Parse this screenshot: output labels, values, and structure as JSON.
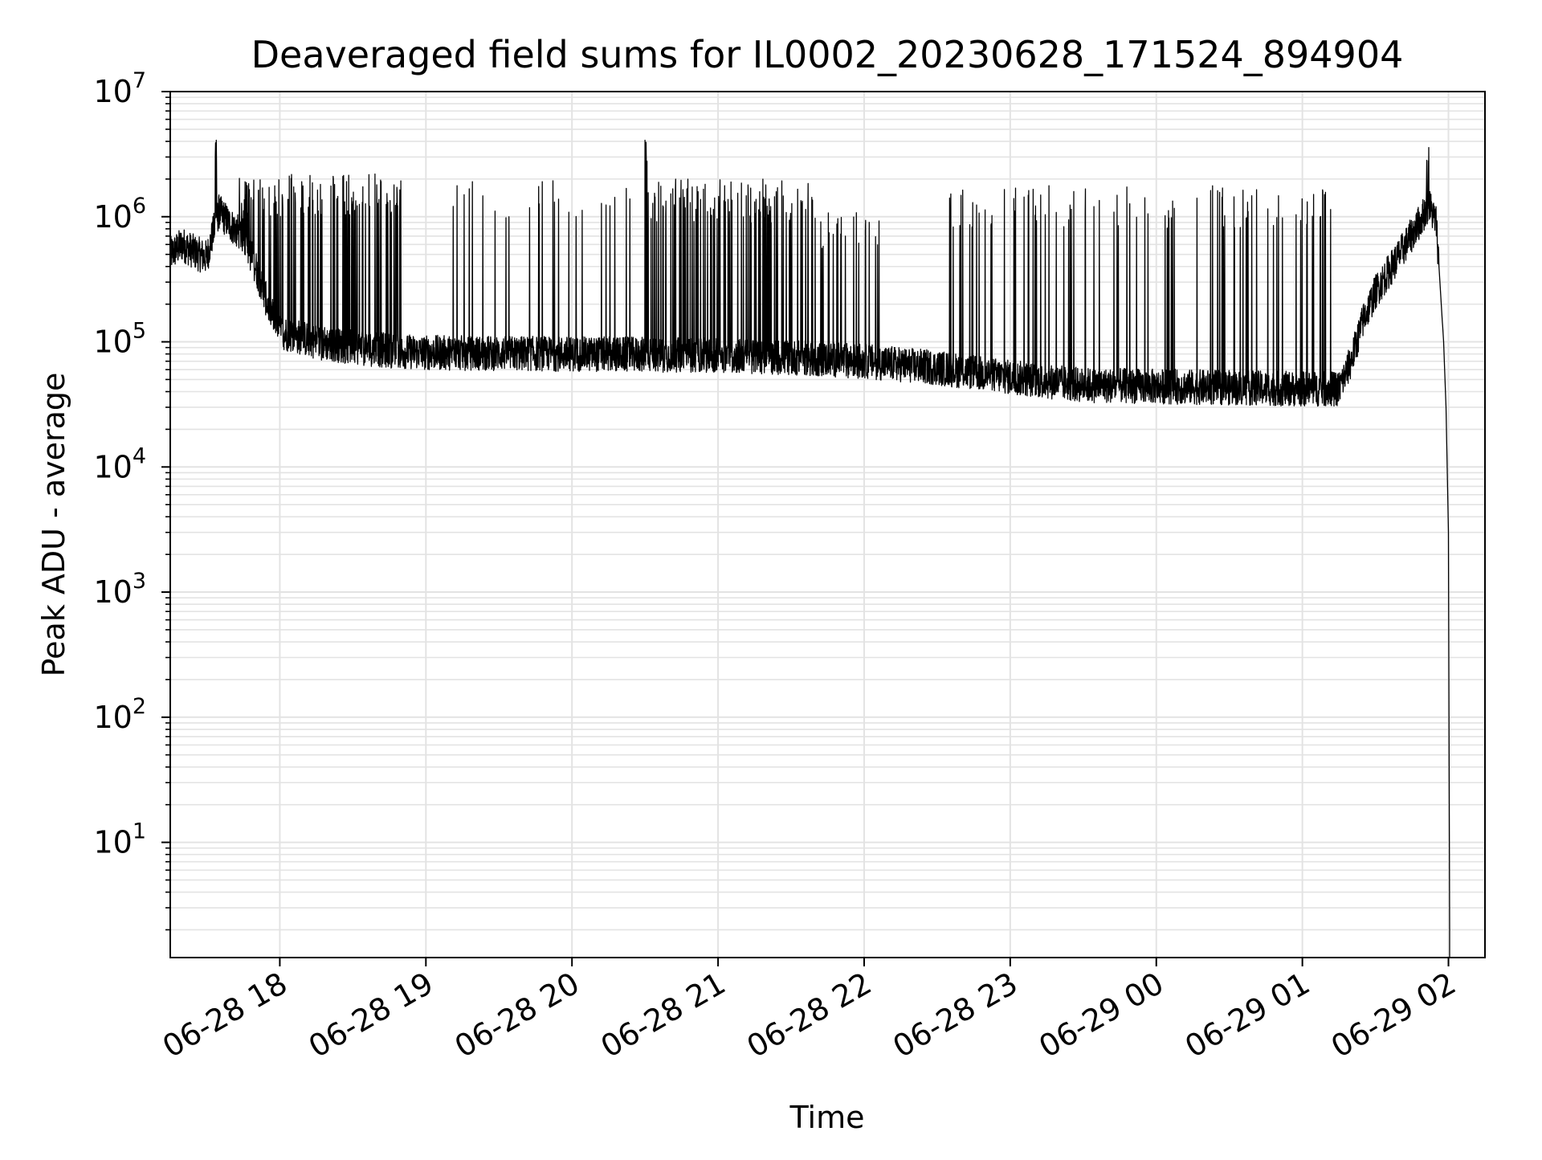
{
  "chart_data": {
    "type": "line",
    "title": "Deaveraged field sums for IL0002_20230628_171524_894904",
    "xlabel": "Time",
    "ylabel": "Peak ADU - average",
    "yscale": "log",
    "xlim": [
      "2023-06-28 17:15",
      "2023-06-29 02:15"
    ],
    "ylim": [
      1.2,
      10000000
    ],
    "grid": "on (major and minor)",
    "line_color": "#000000",
    "grid_color": "#e3e3e3",
    "x_ticks": [
      {
        "t": "2023-06-28 18:00",
        "label": "06-28 18"
      },
      {
        "t": "2023-06-28 19:00",
        "label": "06-28 19"
      },
      {
        "t": "2023-06-28 20:00",
        "label": "06-28 20"
      },
      {
        "t": "2023-06-28 21:00",
        "label": "06-28 21"
      },
      {
        "t": "2023-06-28 22:00",
        "label": "06-28 22"
      },
      {
        "t": "2023-06-28 23:00",
        "label": "06-28 23"
      },
      {
        "t": "2023-06-29 00:00",
        "label": "06-29 00"
      },
      {
        "t": "2023-06-29 01:00",
        "label": "06-29 01"
      },
      {
        "t": "2023-06-29 02:00",
        "label": "06-29 02"
      }
    ],
    "y_ticks": [
      {
        "value": 10,
        "base": "10",
        "exp": "1"
      },
      {
        "value": 100,
        "base": "10",
        "exp": "2"
      },
      {
        "value": 1000,
        "base": "10",
        "exp": "3"
      },
      {
        "value": 10000,
        "base": "10",
        "exp": "4"
      },
      {
        "value": 100000,
        "base": "10",
        "exp": "5"
      },
      {
        "value": 1000000,
        "base": "10",
        "exp": "6"
      },
      {
        "value": 10000000,
        "base": "10",
        "exp": "7"
      }
    ],
    "series": [
      {
        "baseline": [
          [
            "2023-06-28 17:15",
            500000
          ],
          [
            "2023-06-28 17:20",
            600000
          ],
          [
            "2023-06-28 17:25",
            520000
          ],
          [
            "2023-06-28 17:30",
            470000
          ],
          [
            "2023-06-28 17:33",
            800000
          ],
          [
            "2023-06-28 17:35",
            1100000
          ],
          [
            "2023-06-28 17:40",
            850000
          ],
          [
            "2023-06-28 17:45",
            700000
          ],
          [
            "2023-06-28 17:50",
            400000
          ],
          [
            "2023-06-28 17:55",
            200000
          ],
          [
            "2023-06-28 18:00",
            120000
          ],
          [
            "2023-06-28 18:15",
            100000
          ],
          [
            "2023-06-28 18:30",
            90000
          ],
          [
            "2023-06-28 18:45",
            85000
          ],
          [
            "2023-06-28 19:00",
            82000
          ],
          [
            "2023-06-28 20:00",
            80000
          ],
          [
            "2023-06-28 21:00",
            78000
          ],
          [
            "2023-06-28 21:30",
            75000
          ],
          [
            "2023-06-28 22:00",
            70000
          ],
          [
            "2023-06-28 22:30",
            62000
          ],
          [
            "2023-06-28 23:00",
            52000
          ],
          [
            "2023-06-28 23:30",
            45000
          ],
          [
            "2023-06-29 00:00",
            44000
          ],
          [
            "2023-06-29 00:30",
            43000
          ],
          [
            "2023-06-29 01:00",
            42000
          ],
          [
            "2023-06-29 01:15",
            42000
          ],
          [
            "2023-06-29 01:20",
            70000
          ],
          [
            "2023-06-29 01:25",
            150000
          ],
          [
            "2023-06-29 01:30",
            250000
          ],
          [
            "2023-06-29 01:40",
            500000
          ],
          [
            "2023-06-29 01:48",
            900000
          ],
          [
            "2023-06-29 01:52",
            1250000
          ],
          [
            "2023-06-29 01:55",
            900000
          ],
          [
            "2023-06-29 01:58",
            100000
          ],
          [
            "2023-06-29 01:59",
            30000
          ],
          [
            "2023-06-29 02:00",
            3000
          ],
          [
            "2023-06-29 02:00:30",
            2
          ]
        ],
        "spikes": [
          {
            "from": "2023-06-28 17:33",
            "to": "2023-06-28 17:34",
            "peak": 5800000
          },
          {
            "from": "2023-06-28 17:42",
            "to": "2023-06-28 18:50",
            "peak": 2200000
          },
          {
            "from": "2023-06-28 19:10",
            "to": "2023-06-28 19:40",
            "peak": 2000000
          },
          {
            "from": "2023-06-28 19:40",
            "to": "2023-06-28 20:30",
            "peak": 2100000
          },
          {
            "from": "2023-06-28 20:30",
            "to": "2023-06-28 20:31",
            "peak": 5000000
          },
          {
            "from": "2023-06-28 20:30",
            "to": "2023-06-28 21:40",
            "peak": 2000000
          },
          {
            "from": "2023-06-28 21:40",
            "to": "2023-06-28 22:10",
            "peak": 1200000
          },
          {
            "from": "2023-06-28 22:35",
            "to": "2023-06-29 01:12",
            "peak": 1800000
          },
          {
            "from": "2023-06-29 01:51",
            "to": "2023-06-29 01:52",
            "peak": 3800000
          }
        ]
      }
    ]
  }
}
